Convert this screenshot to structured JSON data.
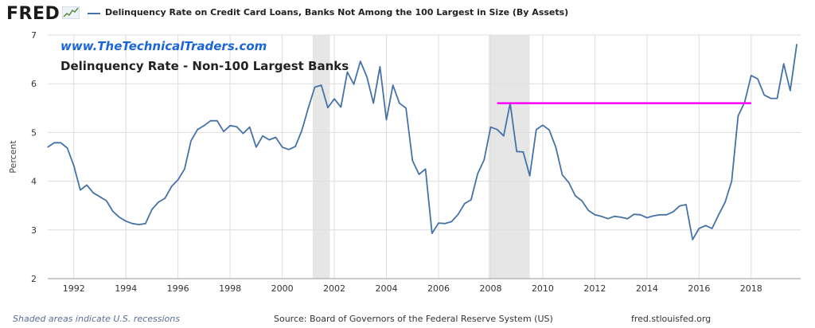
{
  "header": {
    "logo_text": "FRED",
    "series_title": "Delinquency Rate on Credit Card Loans, Banks Not Among the 100 Largest in Size (By Assets)"
  },
  "annotations": {
    "website": "www.TheTechnicalTraders.com",
    "subtitle": "Delinquency Rate - Non-100 Largest Banks"
  },
  "footer": {
    "recessions_note": "Shaded areas indicate U.S. recessions",
    "source": "Source: Board of Governors of the Federal Reserve System (US)",
    "site": "fred.stlouisfed.org"
  },
  "colors": {
    "series": "#4572a7",
    "annotation_line": "#ff00ff",
    "recession": "#e6e6e6",
    "grid": "#dddddd",
    "website_text": "#1a66d9"
  },
  "chart_data": {
    "type": "line",
    "ylabel": "Percent",
    "xlim": [
      1991.0,
      2019.9
    ],
    "ylim": [
      2,
      7
    ],
    "yticks": [
      2,
      3,
      4,
      5,
      6,
      7
    ],
    "xticks": [
      1992,
      1994,
      1996,
      1998,
      2000,
      2002,
      2004,
      2006,
      2008,
      2010,
      2012,
      2014,
      2016,
      2018
    ],
    "grid": true,
    "recessions": [
      [
        2001.17,
        2001.83
      ],
      [
        2007.92,
        2009.5
      ]
    ],
    "horizontal_line": {
      "y": 5.6,
      "x_start": 2008.25,
      "x_end": 2018.0,
      "color": "#ff00ff"
    },
    "series": [
      {
        "x": [
          1991.0,
          1991.25,
          1991.5,
          1991.75,
          1992.0,
          1992.25,
          1992.5,
          1992.75,
          1993.0,
          1993.25,
          1993.5,
          1993.75,
          1994.0,
          1994.25,
          1994.5,
          1994.75,
          1995.0,
          1995.25,
          1995.5,
          1995.75,
          1996.0,
          1996.25,
          1996.5,
          1996.75,
          1997.0,
          1997.25,
          1997.5,
          1997.75,
          1998.0,
          1998.25,
          1998.5,
          1998.75,
          1999.0,
          1999.25,
          1999.5,
          1999.75,
          2000.0,
          2000.25,
          2000.5,
          2000.75,
          2001.0,
          2001.25,
          2001.5,
          2001.75,
          2002.0,
          2002.25,
          2002.5,
          2002.75,
          2003.0,
          2003.25,
          2003.5,
          2003.75,
          2004.0,
          2004.25,
          2004.5,
          2004.75,
          2005.0,
          2005.25,
          2005.5,
          2005.75,
          2006.0,
          2006.25,
          2006.5,
          2006.75,
          2007.0,
          2007.25,
          2007.5,
          2007.75,
          2008.0,
          2008.25,
          2008.5,
          2008.75,
          2009.0,
          2009.25,
          2009.5,
          2009.75,
          2010.0,
          2010.25,
          2010.5,
          2010.75,
          2011.0,
          2011.25,
          2011.5,
          2011.75,
          2012.0,
          2012.25,
          2012.5,
          2012.75,
          2013.0,
          2013.25,
          2013.5,
          2013.75,
          2014.0,
          2014.25,
          2014.5,
          2014.75,
          2015.0,
          2015.25,
          2015.5,
          2015.75,
          2016.0,
          2016.25,
          2016.5,
          2016.75,
          2017.0,
          2017.25,
          2017.5,
          2017.75,
          2018.0,
          2018.25,
          2018.5,
          2018.75,
          2019.0,
          2019.25,
          2019.5,
          2019.75
        ],
        "values": [
          4.7,
          4.79,
          4.79,
          4.68,
          4.32,
          3.82,
          3.92,
          3.76,
          3.68,
          3.6,
          3.38,
          3.26,
          3.18,
          3.13,
          3.11,
          3.13,
          3.42,
          3.57,
          3.65,
          3.89,
          4.03,
          4.25,
          4.83,
          5.06,
          5.14,
          5.24,
          5.24,
          5.02,
          5.14,
          5.12,
          4.98,
          5.11,
          4.7,
          4.93,
          4.85,
          4.9,
          4.7,
          4.65,
          4.71,
          5.04,
          5.5,
          5.93,
          5.97,
          5.51,
          5.69,
          5.52,
          6.24,
          5.99,
          6.46,
          6.14,
          5.6,
          6.35,
          5.26,
          5.97,
          5.6,
          5.5,
          4.42,
          4.14,
          4.25,
          2.93,
          3.14,
          3.13,
          3.17,
          3.32,
          3.54,
          3.62,
          4.15,
          4.44,
          5.11,
          5.06,
          4.93,
          5.6,
          4.61,
          4.6,
          4.11,
          5.06,
          5.15,
          5.05,
          4.7,
          4.13,
          3.97,
          3.7,
          3.6,
          3.4,
          3.31,
          3.28,
          3.23,
          3.28,
          3.26,
          3.23,
          3.32,
          3.31,
          3.25,
          3.29,
          3.31,
          3.31,
          3.37,
          3.49,
          3.52,
          2.8,
          3.03,
          3.09,
          3.03,
          3.31,
          3.57,
          4.0,
          5.34,
          5.62,
          6.17,
          6.1,
          5.77,
          5.7,
          5.7,
          6.41,
          5.86,
          6.81
        ]
      }
    ]
  }
}
